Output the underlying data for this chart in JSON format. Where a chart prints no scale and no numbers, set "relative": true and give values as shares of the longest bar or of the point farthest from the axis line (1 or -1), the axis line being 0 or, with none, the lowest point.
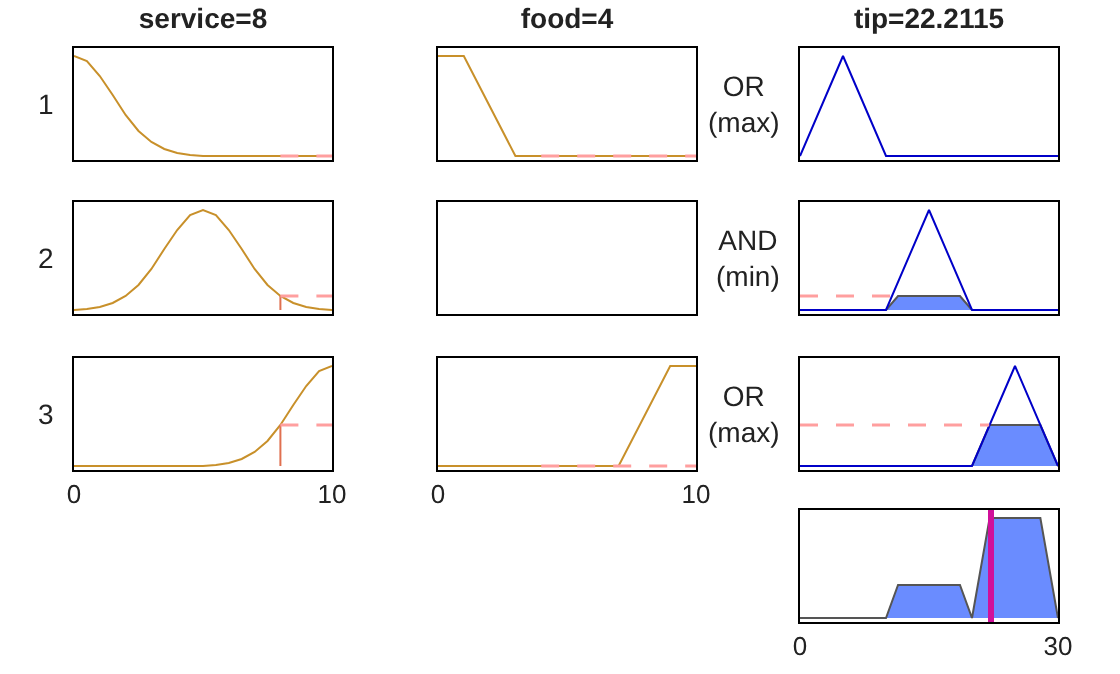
{
  "chart_data": [
    {
      "type": "line",
      "title": "service=8",
      "relative": true,
      "annotations": [
        "1"
      ],
      "xlim": [
        0,
        10
      ],
      "xticks": [
        0,
        10
      ],
      "tick_labels": false,
      "grid": false,
      "series": [
        {
          "color": "#c8902a",
          "x": [
            0,
            0.5,
            1,
            1.5,
            2,
            2.5,
            3,
            3.5,
            4,
            4.5,
            5,
            5.5,
            6,
            6.5,
            7,
            7.5,
            8,
            8.5,
            9,
            9.5,
            10
          ],
          "values": [
            1,
            0.95,
            0.8,
            0.61,
            0.41,
            0.25,
            0.14,
            0.07,
            0.03,
            0.01,
            0,
            0,
            0,
            0,
            0,
            0,
            0,
            0,
            0,
            0,
            0
          ]
        },
        {
          "color": "#ff9f9f",
          "x": [
            8,
            10
          ],
          "values": [
            0,
            0
          ],
          "line_style": "dashed"
        }
      ]
    },
    {
      "type": "line",
      "title": "food=4",
      "relative": true,
      "xlim": [
        0,
        10
      ],
      "xticks": [
        0,
        10
      ],
      "tick_labels": false,
      "grid": false,
      "series": [
        {
          "color": "#c8902a",
          "x": [
            0,
            1,
            3,
            10
          ],
          "values": [
            1,
            1,
            0,
            0
          ]
        },
        {
          "color": "#ff9f9f",
          "x": [
            4,
            10
          ],
          "values": [
            0,
            0
          ],
          "line_style": "dashed"
        }
      ]
    },
    {
      "type": "line",
      "title": "tip=22.2115",
      "relative": true,
      "annotations": [
        "OR\n(max)"
      ],
      "xlim": [
        0,
        30
      ],
      "xticks": [
        0,
        30
      ],
      "tick_labels": false,
      "grid": false,
      "series": [
        {
          "color": "#0000c8",
          "x": [
            0,
            5,
            10,
            30
          ],
          "values": [
            0,
            1,
            0,
            0
          ]
        }
      ]
    },
    {
      "type": "line",
      "relative": true,
      "annotations": [
        "2"
      ],
      "xlim": [
        0,
        10
      ],
      "xticks": [
        0,
        10
      ],
      "tick_labels": false,
      "grid": false,
      "series": [
        {
          "color": "#c8902a",
          "x": [
            0,
            0.5,
            1,
            1.5,
            2,
            2.5,
            3,
            3.5,
            4,
            4.5,
            5,
            5.5,
            6,
            6.5,
            7,
            7.5,
            8,
            8.5,
            9,
            9.5,
            10
          ],
          "values": [
            0,
            0.01,
            0.03,
            0.07,
            0.14,
            0.25,
            0.41,
            0.61,
            0.8,
            0.95,
            1,
            0.95,
            0.8,
            0.61,
            0.41,
            0.25,
            0.14,
            0.07,
            0.03,
            0.01,
            0
          ]
        },
        {
          "color": "#e07050",
          "x": [
            8,
            8
          ],
          "values": [
            0,
            0.14
          ],
          "line_style": "solid"
        },
        {
          "color": "#ff9f9f",
          "x": [
            8,
            10
          ],
          "values": [
            0.14,
            0.14
          ],
          "line_style": "dashed"
        }
      ]
    },
    {
      "type": "other"
    },
    {
      "type": "line",
      "relative": true,
      "annotations": [
        "AND\n(min)"
      ],
      "xlim": [
        0,
        30
      ],
      "xticks": [
        0,
        30
      ],
      "tick_labels": false,
      "grid": false,
      "series": [
        {
          "type": "area",
          "color": "#6a8cff",
          "x": [
            10,
            11.4,
            18.6,
            20
          ],
          "values": [
            0,
            0.14,
            0.14,
            0
          ]
        },
        {
          "color": "#0000c8",
          "x": [
            0,
            10,
            15,
            20,
            30
          ],
          "values": [
            0,
            0,
            1,
            0,
            0
          ]
        },
        {
          "color": "#ff9f9f",
          "x": [
            0,
            10.5
          ],
          "values": [
            0.14,
            0.14
          ],
          "line_style": "dashed"
        }
      ]
    },
    {
      "type": "line",
      "relative": true,
      "annotations": [
        "3"
      ],
      "xlim": [
        0,
        10
      ],
      "xticks": [
        0,
        10
      ],
      "tick_labels": "x",
      "grid": false,
      "series": [
        {
          "color": "#c8902a",
          "x": [
            0,
            0.5,
            1,
            1.5,
            2,
            2.5,
            3,
            3.5,
            4,
            4.5,
            5,
            5.5,
            6,
            6.5,
            7,
            7.5,
            8,
            8.5,
            9,
            9.5,
            10
          ],
          "values": [
            0,
            0,
            0,
            0,
            0,
            0,
            0,
            0,
            0,
            0,
            0,
            0.01,
            0.03,
            0.07,
            0.14,
            0.25,
            0.41,
            0.61,
            0.8,
            0.95,
            1
          ]
        },
        {
          "color": "#e07050",
          "x": [
            8,
            8
          ],
          "values": [
            0,
            0.41
          ],
          "line_style": "solid"
        },
        {
          "color": "#ff9f9f",
          "x": [
            8,
            10
          ],
          "values": [
            0.41,
            0.41
          ],
          "line_style": "dashed"
        }
      ]
    },
    {
      "type": "line",
      "relative": true,
      "xlim": [
        0,
        10
      ],
      "xticks": [
        0,
        10
      ],
      "tick_labels": "x",
      "grid": false,
      "series": [
        {
          "color": "#c8902a",
          "x": [
            0,
            7,
            9,
            10
          ],
          "values": [
            0,
            0,
            1,
            1
          ]
        },
        {
          "color": "#ff9f9f",
          "x": [
            4,
            10
          ],
          "values": [
            0,
            0
          ],
          "line_style": "dashed"
        }
      ]
    },
    {
      "type": "line",
      "relative": true,
      "annotations": [
        "OR\n(max)"
      ],
      "xlim": [
        0,
        30
      ],
      "xticks": [
        0,
        30
      ],
      "tick_labels": false,
      "grid": false,
      "series": [
        {
          "type": "area",
          "color": "#6a8cff",
          "x": [
            20,
            22.05,
            27.95,
            30
          ],
          "values": [
            0,
            0.41,
            0.41,
            0
          ]
        },
        {
          "color": "#0000c8",
          "x": [
            0,
            20,
            25,
            30
          ],
          "values": [
            0,
            0,
            1,
            0
          ]
        },
        {
          "color": "#ff9f9f",
          "x": [
            0,
            22
          ],
          "values": [
            0.41,
            0.41
          ],
          "line_style": "dashed"
        }
      ]
    },
    {
      "type": "line",
      "relative": true,
      "xlim": [
        0,
        30
      ],
      "xticks": [
        0,
        30
      ],
      "tick_labels": "x",
      "grid": false,
      "ref_lines": [
        {
          "axis": "x",
          "value": 22.2115,
          "color": "#d0109a"
        }
      ],
      "series": [
        {
          "type": "area",
          "color": "#6a8cff",
          "x": [
            0,
            10,
            11.4,
            18.6,
            20,
            22.05,
            27.95,
            30
          ],
          "values": [
            0,
            0,
            0.33,
            0.33,
            0,
            1,
            1,
            0
          ]
        }
      ]
    }
  ]
}
